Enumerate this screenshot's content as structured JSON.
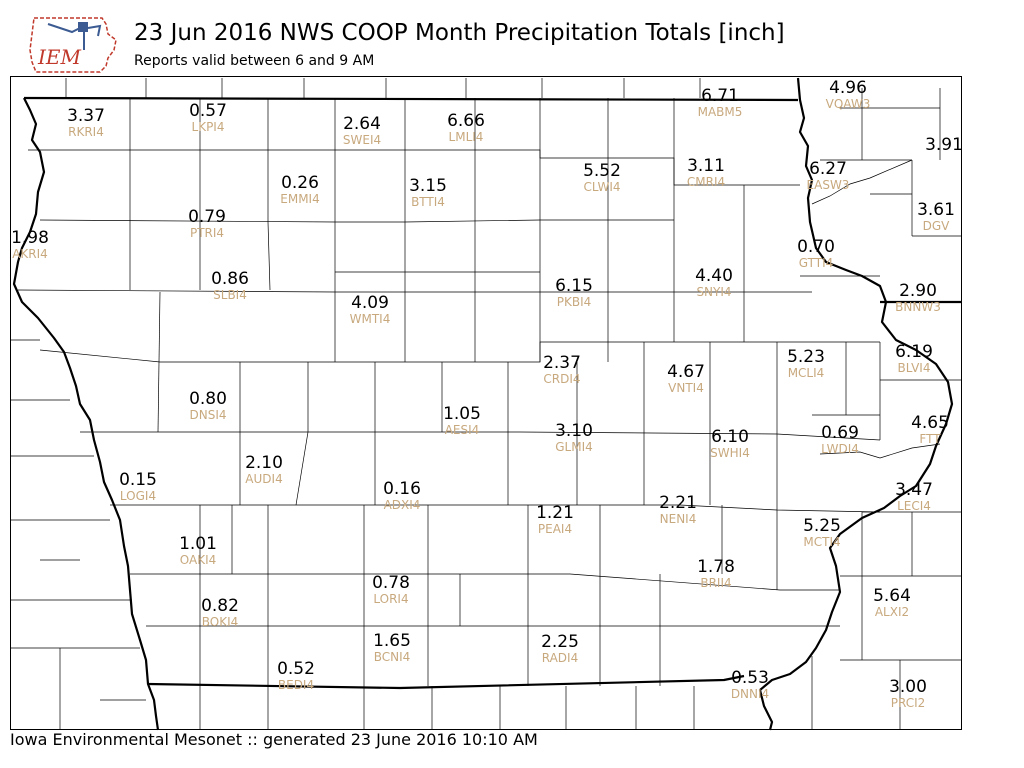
{
  "header": {
    "title": "23 Jun 2016 NWS COOP Month Precipitation Totals [inch]",
    "subtitle": "Reports valid between 6 and 9 AM",
    "logo_text": "IEM"
  },
  "footer": {
    "text": "Iowa Environmental Mesonet :: generated 23 June 2016 10:10 AM"
  },
  "colors": {
    "value": "#000000",
    "station": "#c8a97e",
    "logo_red": "#c0392b",
    "logo_blue": "#3b5b92"
  },
  "stations": [
    {
      "id": "RKRI4",
      "value": "3.37"
    },
    {
      "id": "LKPI4",
      "value": "0.57"
    },
    {
      "id": "SWEI4",
      "value": "2.64"
    },
    {
      "id": "LMLI4",
      "value": "6.66"
    },
    {
      "id": "MABM5",
      "value": "6.71"
    },
    {
      "id": "VQAW3",
      "value": "4.96"
    },
    {
      "id": "",
      "value": "3.91"
    },
    {
      "id": "CLWI4",
      "value": "5.52"
    },
    {
      "id": "CMRI4",
      "value": "3.11"
    },
    {
      "id": "EASW3",
      "value": "6.27"
    },
    {
      "id": "EMMI4",
      "value": "0.26"
    },
    {
      "id": "BTTI4",
      "value": "3.15"
    },
    {
      "id": "PTRI4",
      "value": "0.79"
    },
    {
      "id": "DGV",
      "value": "3.61"
    },
    {
      "id": "AKRI4",
      "value": "1.98"
    },
    {
      "id": "GTTI4",
      "value": "0.70"
    },
    {
      "id": "SLBI4",
      "value": "0.86"
    },
    {
      "id": "PKBI4",
      "value": "6.15"
    },
    {
      "id": "SNYI4",
      "value": "4.40"
    },
    {
      "id": "WMTI4",
      "value": "4.09"
    },
    {
      "id": "BNNW3",
      "value": "2.90"
    },
    {
      "id": "CRDI4",
      "value": "2.37"
    },
    {
      "id": "MCLI4",
      "value": "5.23"
    },
    {
      "id": "BLVI4",
      "value": "6.19"
    },
    {
      "id": "VNTI4",
      "value": "4.67"
    },
    {
      "id": "DNSI4",
      "value": "0.80"
    },
    {
      "id": "AESI4",
      "value": "1.05"
    },
    {
      "id": "GLMI4",
      "value": "3.10"
    },
    {
      "id": "SWHI4",
      "value": "6.10"
    },
    {
      "id": "LWDI4",
      "value": "0.69"
    },
    {
      "id": "FTT",
      "value": "4.65"
    },
    {
      "id": "LOGI4",
      "value": "0.15"
    },
    {
      "id": "AUDI4",
      "value": "2.10"
    },
    {
      "id": "ADXI4",
      "value": "0.16"
    },
    {
      "id": "LECI4",
      "value": "3.47"
    },
    {
      "id": "PEAI4",
      "value": "1.21"
    },
    {
      "id": "NENI4",
      "value": "2.21"
    },
    {
      "id": "MCTI4",
      "value": "5.25"
    },
    {
      "id": "OAKI4",
      "value": "1.01"
    },
    {
      "id": "LORI4",
      "value": "0.78"
    },
    {
      "id": "BRII4",
      "value": "1.78"
    },
    {
      "id": "BOKI4",
      "value": "0.82"
    },
    {
      "id": "ALXI2",
      "value": "5.64"
    },
    {
      "id": "BCNI4",
      "value": "1.65"
    },
    {
      "id": "RADI4",
      "value": "2.25"
    },
    {
      "id": "BEDI4",
      "value": "0.52"
    },
    {
      "id": "DNNI4",
      "value": "0.53"
    },
    {
      "id": "PRCI2",
      "value": "3.00"
    }
  ]
}
